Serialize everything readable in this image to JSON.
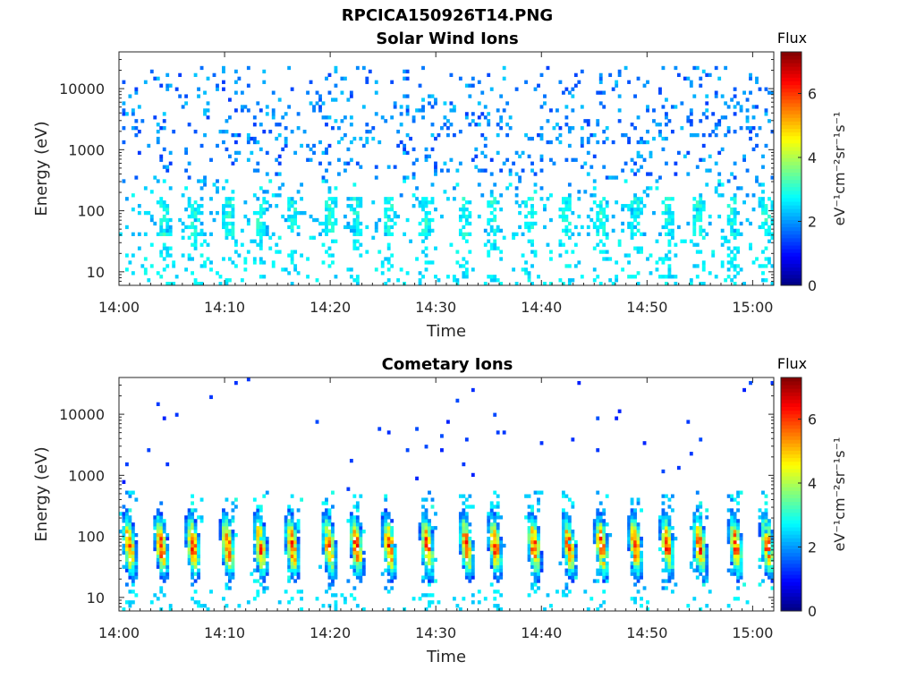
{
  "figure": {
    "title": "RPCICA150926T14.PNG"
  },
  "chart_data": [
    {
      "type": "heatmap",
      "title": "Solar Wind Ions",
      "xlabel": "Time",
      "ylabel": "Energy (eV)",
      "x_ticks": [
        "14:00",
        "14:10",
        "14:20",
        "14:30",
        "14:40",
        "14:50",
        "15:00"
      ],
      "x_range": [
        "14:00",
        "15:02"
      ],
      "y_ticks": [
        10,
        100,
        1000,
        10000
      ],
      "y_scale": "log",
      "y_range": [
        6,
        40000
      ],
      "colorbar": {
        "label": "Flux",
        "units": "eV⁻¹cm⁻²sr⁻¹s⁻¹",
        "ticks": [
          0,
          2,
          4,
          6
        ],
        "range": [
          0,
          7.3
        ],
        "colormap": "jet"
      },
      "sweep_minutes": [
        4.3,
        7.2,
        10.4,
        13.3,
        16.5,
        19.9,
        22.5,
        25.6,
        29.1,
        32.7,
        35.4,
        38.9,
        42.3,
        45.6,
        48.9,
        52.0,
        54.8,
        58.1,
        61.3
      ],
      "distribution": "sparse 1.5–2.5 counts from ~150 eV to ~20000 eV; ~3 flux near 50–200 eV in each sweep; ~2.5 flux streaks below 40 eV"
    },
    {
      "type": "heatmap",
      "title": "Cometary Ions",
      "xlabel": "Time",
      "ylabel": "Energy (eV)",
      "x_ticks": [
        "14:00",
        "14:10",
        "14:20",
        "14:30",
        "14:40",
        "14:50",
        "15:00"
      ],
      "x_range": [
        "14:00",
        "15:02"
      ],
      "y_ticks": [
        10,
        100,
        1000,
        10000
      ],
      "y_scale": "log",
      "y_range": [
        6,
        40000
      ],
      "colorbar": {
        "label": "Flux",
        "units": "eV⁻¹cm⁻²sr⁻¹s⁻¹",
        "ticks": [
          0,
          2,
          4,
          6
        ],
        "range": [
          0,
          7.3
        ],
        "colormap": "jet"
      },
      "sweep_minutes": [
        1.0,
        4.0,
        7.0,
        10.3,
        13.4,
        16.4,
        19.9,
        22.5,
        25.6,
        29.2,
        32.9,
        35.6,
        39.3,
        42.6,
        45.7,
        48.9,
        51.9,
        55.0,
        58.4,
        61.4
      ],
      "peak_energy_eV": 70,
      "peak_flux": 6.3,
      "distribution": "dense ions 20–500 eV peaking at 5–6.5 flux near 60–100 eV; isolated blue counts up to ~14000 eV"
    }
  ]
}
